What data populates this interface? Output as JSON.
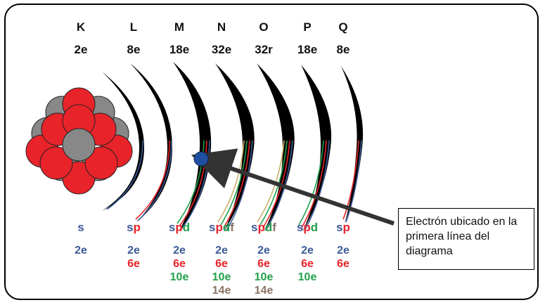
{
  "colors": {
    "s": "#3c5a98",
    "p": "#e8232a",
    "d": "#21a04a",
    "f": "#8b7366",
    "proton": "#e8232a",
    "neutron": "#888888",
    "electron": "#1f4fa0",
    "shell": "#000000"
  },
  "shells": [
    {
      "letter": "K",
      "capacity": "2e",
      "subshells": [
        "s"
      ],
      "counts": [
        "2e"
      ]
    },
    {
      "letter": "L",
      "capacity": "8e",
      "subshells": [
        "s",
        "p"
      ],
      "counts": [
        "2e",
        "6e"
      ]
    },
    {
      "letter": "M",
      "capacity": "18e",
      "subshells": [
        "s",
        "p",
        "d"
      ],
      "counts": [
        "2e",
        "6e",
        "10e"
      ]
    },
    {
      "letter": "N",
      "capacity": "32e",
      "subshells": [
        "s",
        "p",
        "d",
        "f"
      ],
      "counts": [
        "2e",
        "6e",
        "10e",
        "14e"
      ]
    },
    {
      "letter": "O",
      "capacity": "32r",
      "subshells": [
        "s",
        "p",
        "d",
        "f"
      ],
      "counts": [
        "2e",
        "6e",
        "10e",
        "14e"
      ]
    },
    {
      "letter": "P",
      "capacity": "18e",
      "subshells": [
        "s",
        "p",
        "d"
      ],
      "counts": [
        "2e",
        "6e",
        "10e"
      ]
    },
    {
      "letter": "Q",
      "capacity": "8e",
      "subshells": [
        "s",
        "p"
      ],
      "counts": [
        "2e",
        "6e"
      ]
    }
  ],
  "callout": {
    "text": "Electrón ubicado en la primera línea del diagrama"
  }
}
